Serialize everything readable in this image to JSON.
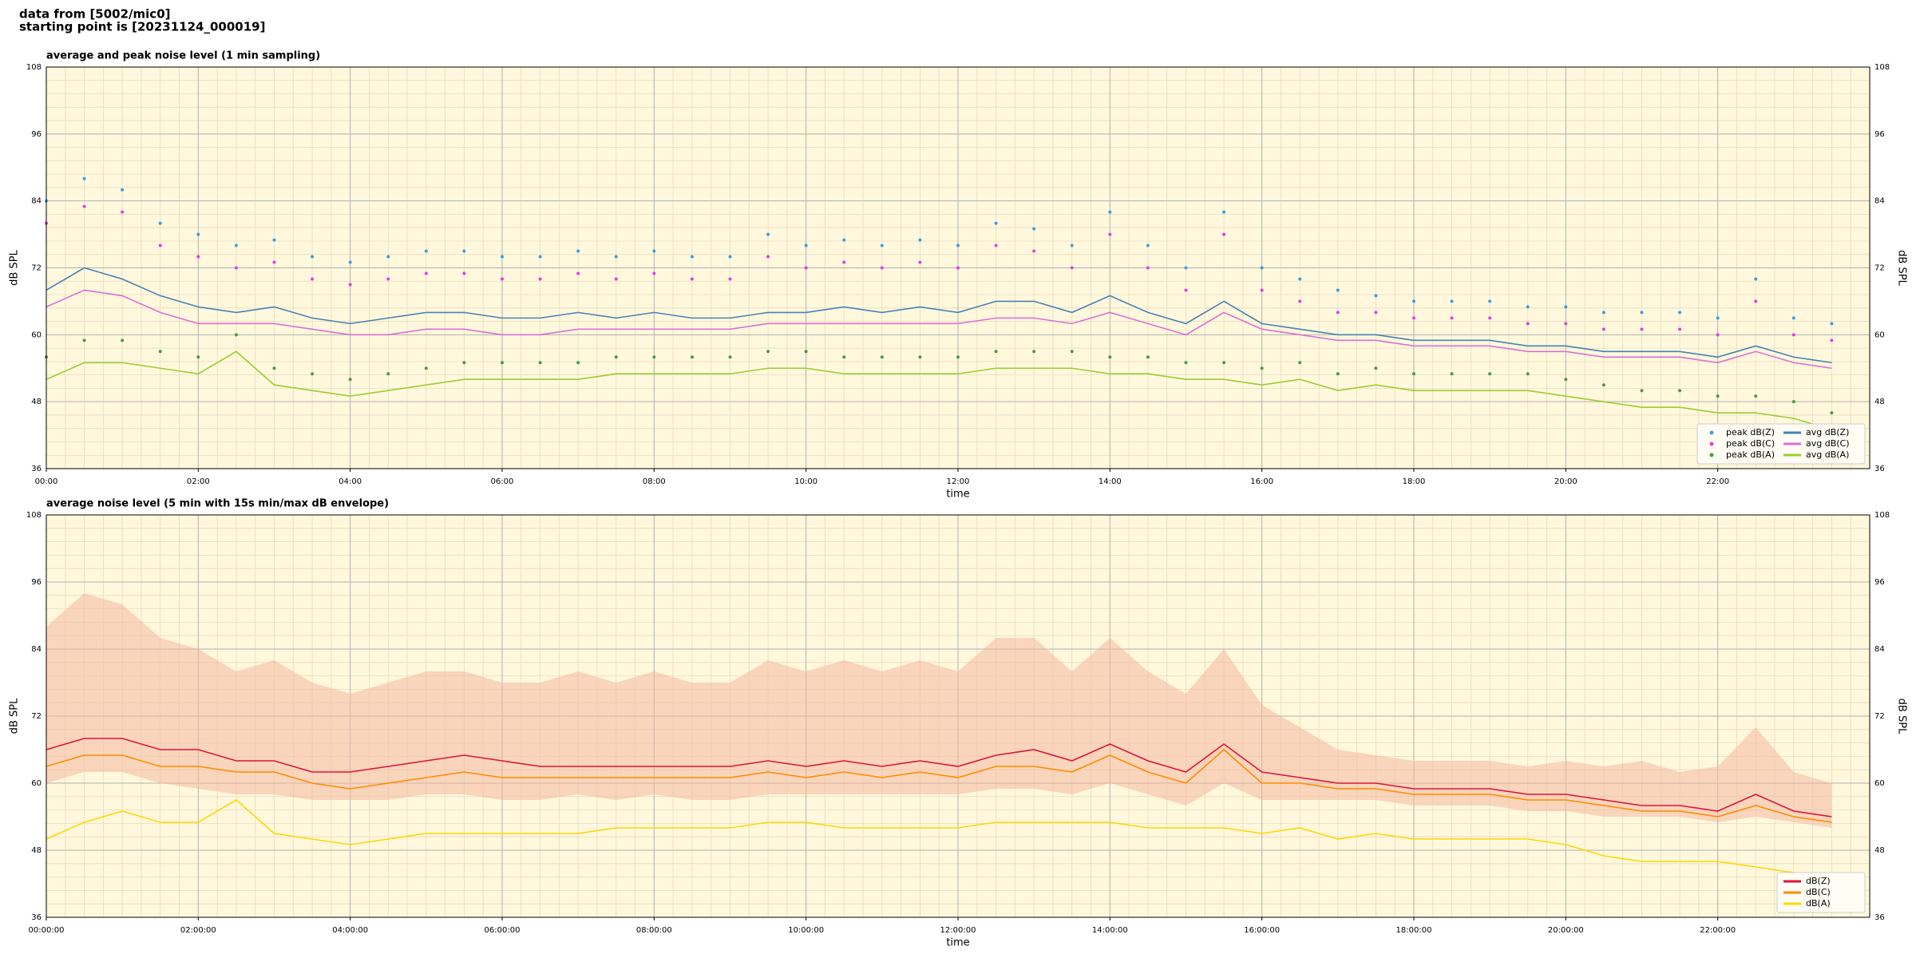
{
  "header": [
    "data from [5002/mic0]",
    "starting point is [20231124_000019]"
  ],
  "chart_data": [
    {
      "type": "line",
      "title": "average and peak noise level (1 min sampling)",
      "x_label": "time",
      "y_label": "dB SPL",
      "background": "#fff8dc",
      "grid": true,
      "legend": "lower right",
      "xlim": [
        0,
        24
      ],
      "xticks": [
        {
          "value": 0,
          "label": "00:00"
        },
        {
          "value": 2,
          "label": "02:00"
        },
        {
          "value": 4,
          "label": "04:00"
        },
        {
          "value": 6,
          "label": "06:00"
        },
        {
          "value": 8,
          "label": "08:00"
        },
        {
          "value": 10,
          "label": "10:00"
        },
        {
          "value": 12,
          "label": "12:00"
        },
        {
          "value": 14,
          "label": "14:00"
        },
        {
          "value": 16,
          "label": "16:00"
        },
        {
          "value": 18,
          "label": "18:00"
        },
        {
          "value": 20,
          "label": "20:00"
        },
        {
          "value": 22,
          "label": "22:00"
        }
      ],
      "ylim": [
        36,
        108
      ],
      "yticks": [
        36,
        48,
        60,
        72,
        84,
        96,
        108
      ],
      "x": [
        0,
        0.5,
        1,
        1.5,
        2,
        2.5,
        3,
        3.5,
        4,
        4.5,
        5,
        5.5,
        6,
        6.5,
        7,
        7.5,
        8,
        8.5,
        9,
        9.5,
        10,
        10.5,
        11,
        11.5,
        12,
        12.5,
        13,
        13.5,
        14,
        14.5,
        15,
        15.5,
        16,
        16.5,
        17,
        17.5,
        18,
        18.5,
        19,
        19.5,
        20,
        20.5,
        21,
        21.5,
        22,
        22.5,
        23,
        23.5
      ],
      "series": [
        {
          "name": "peak dB(Z)",
          "mode": "markers",
          "color": "#3b9fe0",
          "values": [
            84,
            88,
            86,
            80,
            78,
            76,
            77,
            74,
            73,
            74,
            75,
            75,
            74,
            74,
            75,
            74,
            75,
            74,
            74,
            78,
            76,
            77,
            76,
            77,
            76,
            80,
            79,
            76,
            82,
            76,
            72,
            82,
            72,
            70,
            68,
            67,
            66,
            66,
            66,
            65,
            65,
            64,
            64,
            64,
            63,
            70,
            63,
            62
          ]
        },
        {
          "name": "peak dB(C)",
          "mode": "markers",
          "color": "#e040e0",
          "values": [
            80,
            83,
            82,
            76,
            74,
            72,
            73,
            70,
            69,
            70,
            71,
            71,
            70,
            70,
            71,
            70,
            71,
            70,
            70,
            74,
            72,
            73,
            72,
            73,
            72,
            76,
            75,
            72,
            78,
            72,
            68,
            78,
            68,
            66,
            64,
            64,
            63,
            63,
            63,
            62,
            62,
            61,
            61,
            61,
            60,
            66,
            60,
            59
          ]
        },
        {
          "name": "peak dB(A)",
          "mode": "markers",
          "color": "#4a9a4a",
          "values": [
            56,
            59,
            59,
            57,
            56,
            60,
            54,
            53,
            52,
            53,
            54,
            55,
            55,
            55,
            55,
            56,
            56,
            56,
            56,
            57,
            57,
            56,
            56,
            56,
            56,
            57,
            57,
            57,
            56,
            56,
            55,
            55,
            54,
            55,
            53,
            54,
            53,
            53,
            53,
            53,
            52,
            51,
            50,
            50,
            49,
            49,
            48,
            46
          ]
        },
        {
          "name": "avg dB(Z)",
          "mode": "lines",
          "color": "#4682b4",
          "values": [
            68,
            72,
            70,
            67,
            65,
            64,
            65,
            63,
            62,
            63,
            64,
            64,
            63,
            63,
            64,
            63,
            64,
            63,
            63,
            64,
            64,
            65,
            64,
            65,
            64,
            66,
            66,
            64,
            67,
            64,
            62,
            66,
            62,
            61,
            60,
            60,
            59,
            59,
            59,
            58,
            58,
            57,
            57,
            57,
            56,
            58,
            56,
            55
          ]
        },
        {
          "name": "avg dB(C)",
          "mode": "lines",
          "color": "#da70d6",
          "values": [
            65,
            68,
            67,
            64,
            62,
            62,
            62,
            61,
            60,
            60,
            61,
            61,
            60,
            60,
            61,
            61,
            61,
            61,
            61,
            62,
            62,
            62,
            62,
            62,
            62,
            63,
            63,
            62,
            64,
            62,
            60,
            64,
            61,
            60,
            59,
            59,
            58,
            58,
            58,
            57,
            57,
            56,
            56,
            56,
            55,
            57,
            55,
            54
          ]
        },
        {
          "name": "avg dB(A)",
          "mode": "lines",
          "color": "#9acd32",
          "values": [
            52,
            55,
            55,
            54,
            53,
            57,
            51,
            50,
            49,
            50,
            51,
            52,
            52,
            52,
            52,
            53,
            53,
            53,
            53,
            54,
            54,
            53,
            53,
            53,
            53,
            54,
            54,
            54,
            53,
            53,
            52,
            52,
            51,
            52,
            50,
            51,
            50,
            50,
            50,
            50,
            49,
            48,
            47,
            47,
            46,
            46,
            45,
            43
          ]
        }
      ]
    },
    {
      "type": "line",
      "title": "average noise level (5 min with 15s min/max dB envelope)",
      "x_label": "time",
      "y_label": "dB SPL",
      "background": "#fff8dc",
      "grid": true,
      "legend": "lower right",
      "xlim": [
        0,
        24
      ],
      "xticks": [
        {
          "value": 0,
          "label": "00:00:00"
        },
        {
          "value": 2,
          "label": "02:00:00"
        },
        {
          "value": 4,
          "label": "04:00:00"
        },
        {
          "value": 6,
          "label": "06:00:00"
        },
        {
          "value": 8,
          "label": "08:00:00"
        },
        {
          "value": 10,
          "label": "10:00:00"
        },
        {
          "value": 12,
          "label": "12:00:00"
        },
        {
          "value": 14,
          "label": "14:00:00"
        },
        {
          "value": 16,
          "label": "16:00:00"
        },
        {
          "value": 18,
          "label": "18:00:00"
        },
        {
          "value": 20,
          "label": "20:00:00"
        },
        {
          "value": 22,
          "label": "22:00:00"
        }
      ],
      "ylim": [
        36,
        108
      ],
      "yticks": [
        36,
        48,
        60,
        72,
        84,
        96,
        108
      ],
      "x": [
        0,
        0.5,
        1,
        1.5,
        2,
        2.5,
        3,
        3.5,
        4,
        4.5,
        5,
        5.5,
        6,
        6.5,
        7,
        7.5,
        8,
        8.5,
        9,
        9.5,
        10,
        10.5,
        11,
        11.5,
        12,
        12.5,
        13,
        13.5,
        14,
        14.5,
        15,
        15.5,
        16,
        16.5,
        17,
        17.5,
        18,
        18.5,
        19,
        19.5,
        20,
        20.5,
        21,
        21.5,
        22,
        22.5,
        23,
        23.5
      ],
      "envelope": {
        "color": "#f4b8a0",
        "upper": [
          88,
          94,
          92,
          86,
          84,
          80,
          82,
          78,
          76,
          78,
          80,
          80,
          78,
          78,
          80,
          78,
          80,
          78,
          78,
          82,
          80,
          82,
          80,
          82,
          80,
          86,
          86,
          80,
          86,
          80,
          76,
          84,
          74,
          70,
          66,
          65,
          64,
          64,
          64,
          63,
          64,
          63,
          64,
          62,
          63,
          70,
          62,
          60
        ],
        "lower": [
          60,
          62,
          62,
          60,
          59,
          58,
          58,
          57,
          57,
          57,
          58,
          58,
          57,
          57,
          58,
          57,
          58,
          57,
          57,
          58,
          58,
          58,
          58,
          58,
          58,
          59,
          59,
          58,
          60,
          58,
          56,
          60,
          57,
          57,
          57,
          57,
          56,
          56,
          56,
          55,
          55,
          54,
          54,
          54,
          53,
          54,
          53,
          52
        ]
      },
      "series": [
        {
          "name": "dB(Z)",
          "color": "#dc143c",
          "values": [
            66,
            68,
            68,
            66,
            66,
            64,
            64,
            62,
            62,
            63,
            64,
            65,
            64,
            63,
            63,
            63,
            63,
            63,
            63,
            64,
            63,
            64,
            63,
            64,
            63,
            65,
            66,
            64,
            67,
            64,
            62,
            67,
            62,
            61,
            60,
            60,
            59,
            59,
            59,
            58,
            58,
            57,
            56,
            56,
            55,
            58,
            55,
            54
          ]
        },
        {
          "name": "dB(C)",
          "color": "#ff8c00",
          "values": [
            63,
            65,
            65,
            63,
            63,
            62,
            62,
            60,
            59,
            60,
            61,
            62,
            61,
            61,
            61,
            61,
            61,
            61,
            61,
            62,
            61,
            62,
            61,
            62,
            61,
            63,
            63,
            62,
            65,
            62,
            60,
            66,
            60,
            60,
            59,
            59,
            58,
            58,
            58,
            57,
            57,
            56,
            55,
            55,
            54,
            56,
            54,
            53
          ]
        },
        {
          "name": "dB(A)",
          "color": "#ffd700",
          "values": [
            50,
            53,
            55,
            53,
            53,
            57,
            51,
            50,
            49,
            50,
            51,
            51,
            51,
            51,
            51,
            52,
            52,
            52,
            52,
            53,
            53,
            52,
            52,
            52,
            52,
            53,
            53,
            53,
            53,
            52,
            52,
            52,
            51,
            52,
            50,
            51,
            50,
            50,
            50,
            50,
            49,
            47,
            46,
            46,
            46,
            45,
            44,
            42
          ]
        }
      ]
    }
  ]
}
